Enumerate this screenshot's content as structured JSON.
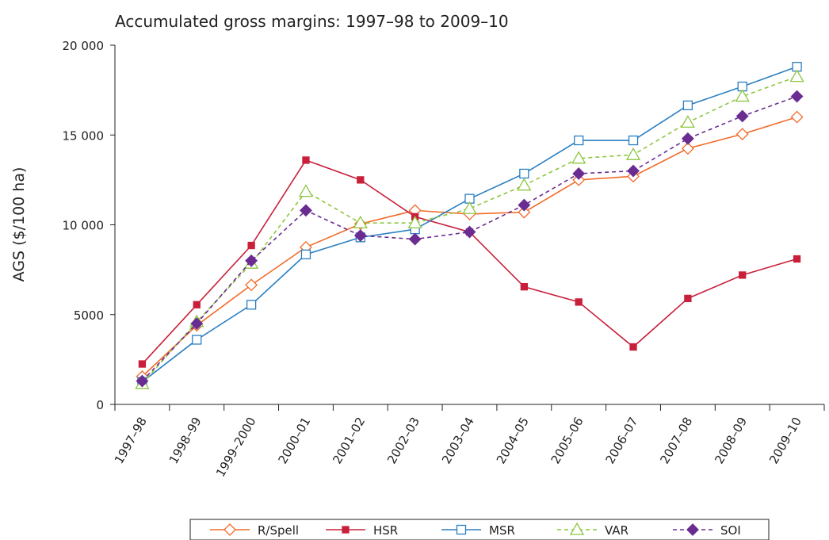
{
  "chart_data": {
    "type": "line",
    "title": "Accumulated gross margins: 1997–98 to 2009–10",
    "y_label": "AGS ($/100 ha)",
    "categories": [
      "1997–98",
      "1998–99",
      "1999–2000",
      "2000–01",
      "2001–02",
      "2002–03",
      "2003–04",
      "2004–05",
      "2005–06",
      "2006–07",
      "2007–08",
      "2008–09",
      "2009–10"
    ],
    "ylim": [
      0,
      20000
    ],
    "yticks": [
      0,
      {
        "value": 5000,
        "label": "5000"
      },
      {
        "value": 10000,
        "label": "10 000"
      },
      {
        "value": 15000,
        "label": "15 000"
      },
      {
        "value": 20000,
        "label": "20 000"
      }
    ],
    "legend": "bottom",
    "series": [
      {
        "name": "R/Spell",
        "color": "#f26b2a",
        "marker": "diamond",
        "filled": false,
        "dashed": false,
        "values": [
          1550,
          4400,
          6650,
          8750,
          10050,
          10800,
          10600,
          10700,
          12500,
          12700,
          14250,
          15050,
          16000
        ]
      },
      {
        "name": "HSR",
        "color": "#c8203a",
        "marker": "square-small",
        "filled": true,
        "dashed": false,
        "values": [
          2250,
          5550,
          8850,
          13600,
          12500,
          10450,
          9600,
          6550,
          5700,
          3200,
          5900,
          7200,
          8100
        ]
      },
      {
        "name": "MSR",
        "color": "#2a7fc1",
        "marker": "square",
        "filled": false,
        "dashed": false,
        "values": [
          1250,
          3600,
          5550,
          8350,
          9300,
          9750,
          11450,
          12850,
          14700,
          14700,
          16650,
          17700,
          18800
        ]
      },
      {
        "name": "VAR",
        "color": "#8cc63f",
        "marker": "triangle",
        "filled": false,
        "dashed": true,
        "values": [
          1150,
          4600,
          7850,
          11850,
          10100,
          10100,
          10900,
          12200,
          13700,
          13900,
          15700,
          17150,
          18250
        ]
      },
      {
        "name": "SOI",
        "color": "#6a2c91",
        "marker": "diamond",
        "filled": true,
        "dashed": true,
        "values": [
          1300,
          4500,
          8000,
          10800,
          9400,
          9200,
          9600,
          11100,
          12850,
          13000,
          14800,
          16050,
          17150
        ]
      }
    ]
  }
}
